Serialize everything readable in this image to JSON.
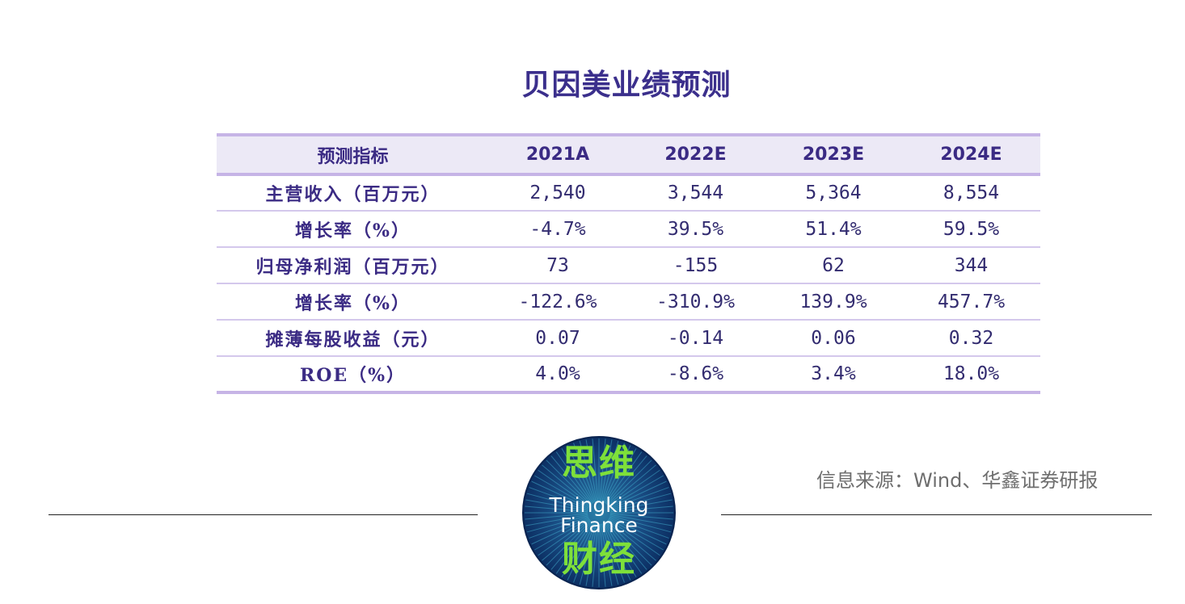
{
  "title": "贝因美业绩预测",
  "table": {
    "headers": [
      "预测指标",
      "2021A",
      "2022E",
      "2023E",
      "2024E"
    ],
    "rows": [
      {
        "label": "主营收入（百万元）",
        "values": [
          "2,540",
          "3,544",
          "5,364",
          "8,554"
        ]
      },
      {
        "label": "增长率（%）",
        "values": [
          "-4.7%",
          "39.5%",
          "51.4%",
          "59.5%"
        ]
      },
      {
        "label": "归母净利润（百万元）",
        "values": [
          "73",
          "-155",
          "62",
          "344"
        ]
      },
      {
        "label": "增长率（%）",
        "values": [
          "-122.6%",
          "-310.9%",
          "139.9%",
          "457.7%"
        ]
      },
      {
        "label": "摊薄每股收益（元）",
        "values": [
          "0.07",
          "-0.14",
          "0.06",
          "0.32"
        ]
      },
      {
        "label": "ROE（%）",
        "values": [
          "4.0%",
          "-8.6%",
          "3.4%",
          "18.0%"
        ]
      }
    ]
  },
  "source": "信息来源：Wind、华鑫证券研报",
  "logo": {
    "cn_top": "思维",
    "en_line1": "Thingking",
    "en_line2": "Finance",
    "cn_bottom": "财经",
    "colors": {
      "bg_outer": "#0c2f63",
      "bg_inner": "#1f5c8a",
      "ray": "#3fa7c9",
      "cn_text": "#7ee03a"
    }
  },
  "colors": {
    "title": "#3b2f8c",
    "header_bg": "#ece9f6",
    "border": "#c6b4e6"
  }
}
